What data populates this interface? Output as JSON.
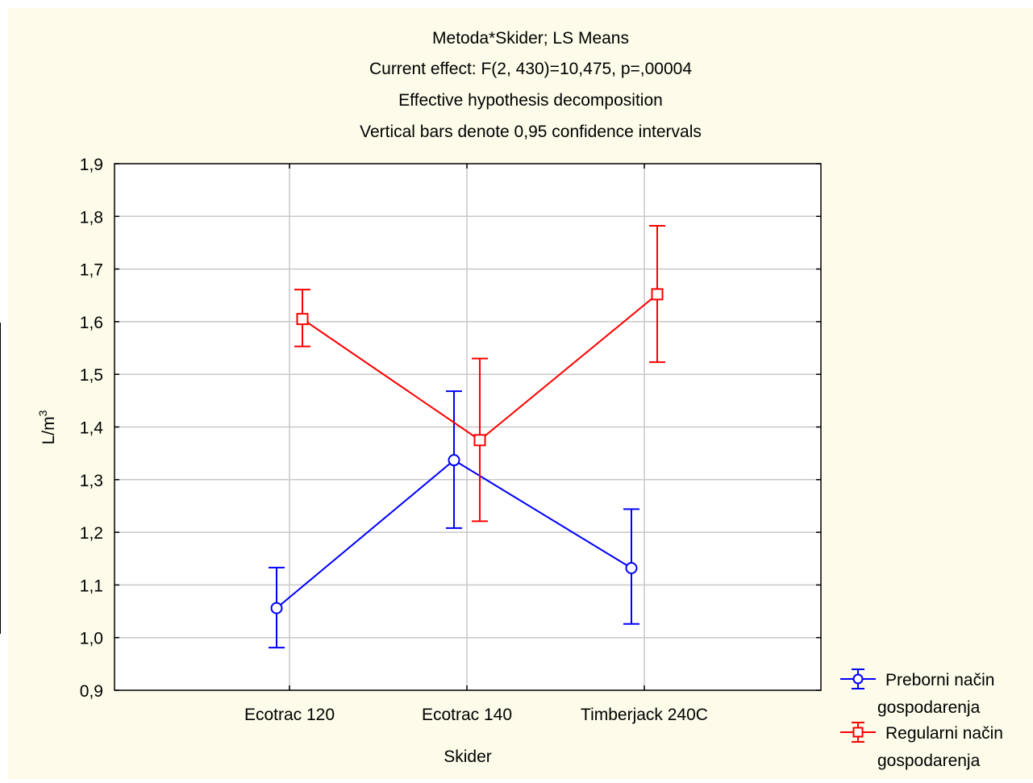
{
  "colors": {
    "background": "#fdfbe9",
    "plot_background": "#ffffff",
    "grid": "#c8c8c8",
    "series_preborni": "#0000ff",
    "series_regularni": "#ff0000"
  },
  "chart_data": {
    "type": "line",
    "title_lines": [
      "Metoda*Skider; LS Means",
      "Current effect: F(2, 430)=10,475, p=,00004",
      "Effective hypothesis decomposition",
      "Vertical bars denote 0,95 confidence intervals"
    ],
    "xlabel": "Skider",
    "ylabel_base": "L/m",
    "ylabel_sup": "3",
    "categories": [
      "Ecotrac 120",
      "Ecotrac 140",
      "Timberjack 240C"
    ],
    "ylim": [
      0.9,
      1.9
    ],
    "y_ticks": [
      0.9,
      1.0,
      1.1,
      1.2,
      1.3,
      1.4,
      1.5,
      1.6,
      1.7,
      1.8,
      1.9
    ],
    "y_tick_labels": [
      "0,9",
      "1,0",
      "1,1",
      "1,2",
      "1,3",
      "1,4",
      "1,5",
      "1,6",
      "1,7",
      "1,8",
      "1,9"
    ],
    "grid": true,
    "legend_position": "bottom-right outside",
    "series": [
      {
        "name_lines": [
          "Preborni način",
          "gospodarenja"
        ],
        "color": "#0000ff",
        "marker": "circle",
        "values": [
          1.056,
          1.337,
          1.132
        ],
        "ci_low": [
          0.981,
          1.208,
          1.026
        ],
        "ci_high": [
          1.133,
          1.468,
          1.244
        ]
      },
      {
        "name_lines": [
          "Regularni način",
          "gospodarenja"
        ],
        "color": "#ff0000",
        "marker": "square",
        "values": [
          1.605,
          1.375,
          1.652
        ],
        "ci_low": [
          1.553,
          1.221,
          1.523
        ],
        "ci_high": [
          1.661,
          1.53,
          1.782
        ]
      }
    ]
  }
}
